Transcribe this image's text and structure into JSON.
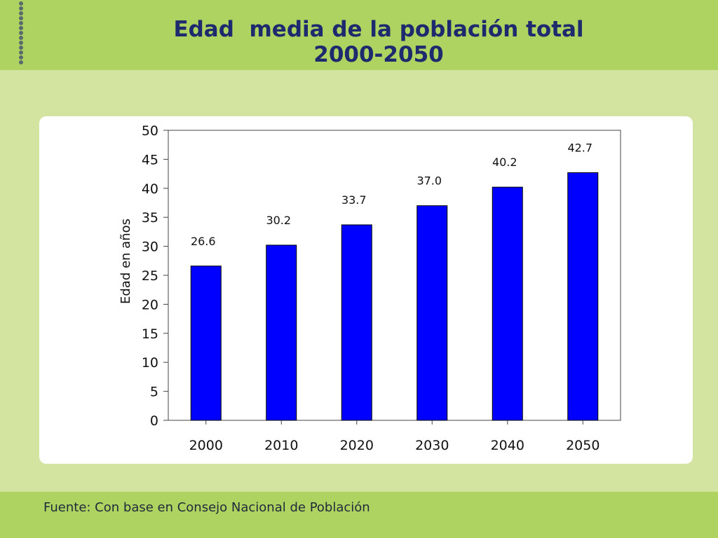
{
  "slide": {
    "title_line1": "Edad  media de la población total",
    "title_line2": "2000-2050",
    "source": "Fuente: Con base en Consejo Nacional de Población"
  },
  "chart_data": {
    "type": "bar",
    "categories": [
      "2000",
      "2010",
      "2020",
      "2030",
      "2040",
      "2050"
    ],
    "values": [
      26.6,
      30.2,
      33.7,
      37.0,
      40.2,
      42.7
    ],
    "data_labels": [
      "26.6",
      "30.2",
      "33.7",
      "37.0",
      "40.2",
      "42.7"
    ],
    "title": "",
    "xlabel": "",
    "ylabel": "Edad en años",
    "ylim": [
      0,
      50
    ],
    "yticks": [
      0,
      5,
      10,
      15,
      20,
      25,
      30,
      35,
      40,
      45,
      50
    ],
    "bar_color": "#0000ff",
    "grid": false,
    "legend": "none"
  }
}
